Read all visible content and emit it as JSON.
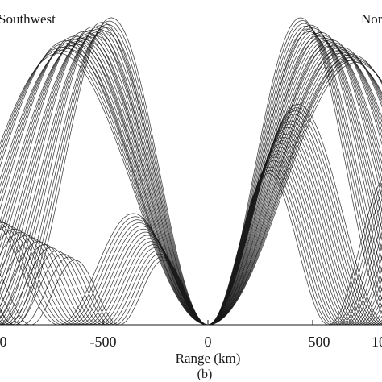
{
  "chart_data": {
    "type": "line",
    "title": "",
    "xlabel": "Range (km)",
    "ylabel": "",
    "xlim": [
      -1000,
      1000
    ],
    "x_ticks": [
      -500,
      0,
      500
    ],
    "x_tick_labels": [
      "-500",
      "0",
      "500"
    ],
    "left_edge_tick_label": "0",
    "right_edge_tick_label": "10",
    "panel_label": "(b)",
    "annotations": [
      {
        "text": "Southwest",
        "position": "top-left"
      },
      {
        "text": "Nor",
        "position": "top-right"
      }
    ],
    "grid": false,
    "legend": "none",
    "line_color": "#1a1a1a",
    "background": "#ffffff"
  }
}
